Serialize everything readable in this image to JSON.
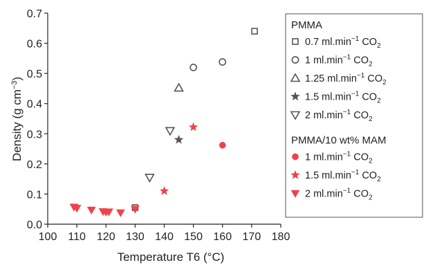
{
  "chart_data": {
    "type": "scatter",
    "xlabel": "Temperature T6 (°C)",
    "ylabel_parts": {
      "main": "Density (g cm",
      "sup": "−3",
      "end": ")"
    },
    "xlim": [
      100,
      180
    ],
    "ylim": [
      0.0,
      0.7
    ],
    "xticks": [
      100,
      110,
      120,
      130,
      140,
      150,
      160,
      170,
      180
    ],
    "yticks": [
      0.0,
      0.1,
      0.2,
      0.3,
      0.4,
      0.5,
      0.6,
      0.7
    ],
    "xtick_labels": [
      "100",
      "110",
      "120",
      "130",
      "140",
      "150",
      "160",
      "170",
      "180"
    ],
    "ytick_labels": [
      "0.0",
      "0.1",
      "0.2",
      "0.3",
      "0.4",
      "0.5",
      "0.6",
      "0.7"
    ],
    "grid": false,
    "legend_position": "right",
    "colors": {
      "pmma": "#555555",
      "mam": "#f0424a"
    },
    "groups": [
      {
        "name": "PMMA",
        "color": "#555555",
        "series": [
          {
            "label_main": "0.7 ml.min",
            "label_sup": "−1",
            "label_co2": "CO",
            "label_sub": "2",
            "marker": "square",
            "filled": false,
            "points": [
              [
                130,
                0.055
              ],
              [
                171,
                0.64
              ]
            ]
          },
          {
            "label_main": "1 ml.min",
            "label_sup": "−1",
            "label_co2": "CO",
            "label_sub": "2",
            "marker": "circle",
            "filled": false,
            "points": [
              [
                150,
                0.52
              ],
              [
                160,
                0.538
              ]
            ]
          },
          {
            "label_main": "1.25 ml.min",
            "label_sup": "−1",
            "label_co2": "CO",
            "label_sub": "2",
            "marker": "triangle-up",
            "filled": false,
            "points": [
              [
                145,
                0.452
              ]
            ]
          },
          {
            "label_main": "1.5 ml.min",
            "label_sup": "−1",
            "label_co2": "CO",
            "label_sub": "2",
            "marker": "star",
            "filled": true,
            "points": [
              [
                145,
                0.28
              ]
            ]
          },
          {
            "label_main": "2 ml.min",
            "label_sup": "−1",
            "label_co2": "CO",
            "label_sub": "2",
            "marker": "triangle-down",
            "filled": false,
            "points": [
              [
                135,
                0.155
              ],
              [
                142,
                0.31
              ]
            ]
          }
        ]
      },
      {
        "name": "PMMA/10 wt% MAM",
        "color": "#f0424a",
        "series": [
          {
            "label_main": "1 ml.min",
            "label_sup": "−1",
            "label_co2": "CO",
            "label_sub": "2",
            "marker": "circle",
            "filled": true,
            "points": [
              [
                160,
                0.262
              ]
            ]
          },
          {
            "label_main": "1.5 ml.min",
            "label_sup": "−1",
            "label_co2": "CO",
            "label_sub": "2",
            "marker": "star",
            "filled": true,
            "points": [
              [
                140,
                0.11
              ],
              [
                150,
                0.322
              ]
            ]
          },
          {
            "label_main": "2 ml.min",
            "label_sup": "−1",
            "label_co2": "CO",
            "label_sub": "2",
            "marker": "triangle-down",
            "filled": true,
            "points": [
              [
                109,
                0.057
              ],
              [
                110,
                0.053
              ],
              [
                115,
                0.047
              ],
              [
                119,
                0.042
              ],
              [
                120,
                0.04
              ],
              [
                121,
                0.041
              ],
              [
                125,
                0.038
              ],
              [
                130,
                0.05
              ]
            ]
          }
        ]
      }
    ]
  }
}
